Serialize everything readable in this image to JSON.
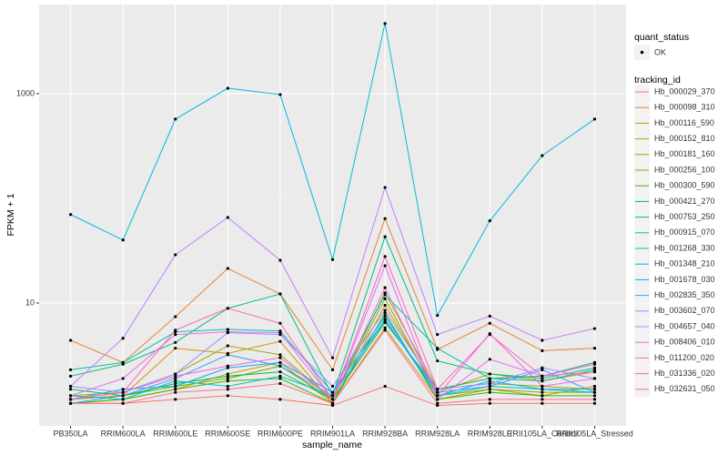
{
  "chart_data": {
    "type": "line",
    "x_label": "sample_name",
    "y_label": "FPKM + 1",
    "categories": [
      "PB350LA",
      "RRIM600LA",
      "RRIM600LE",
      "RRIM600SE",
      "RRIM600PE",
      "RRIM901LA",
      "RRIM928BA",
      "RRIM928LA",
      "RRIM928LE",
      "RRII105LA_Control",
      "RRII105LA_Stressed"
    ],
    "ylim": [
      0.67,
      7100
    ],
    "yticks": [
      10,
      1000
    ],
    "y_minor_grid": [
      1,
      100
    ],
    "log_y": true,
    "grid": true,
    "point_color": "#000000",
    "legend": {
      "point_title": "quant_status",
      "point_label": "OK",
      "line_title": "tracking_id",
      "position": "right"
    },
    "series": [
      {
        "name": "Hb_000029_370",
        "color": "#F8766D",
        "values": [
          1.1,
          1.1,
          1.2,
          1.3,
          1.2,
          1.05,
          1.6,
          1.05,
          1.1,
          1.1,
          1.1
        ]
      },
      {
        "name": "Hb_000098_310",
        "color": "#EA8331",
        "values": [
          4.4,
          2.7,
          7.4,
          21.4,
          12.2,
          2.3,
          64,
          3.6,
          6.4,
          3.5,
          3.7
        ]
      },
      {
        "name": "Hb_000116_590",
        "color": "#D89000",
        "values": [
          1.2,
          1.3,
          3.7,
          3.3,
          4.3,
          1.1,
          9.5,
          1.4,
          2.1,
          1.8,
          2.2
        ]
      },
      {
        "name": "Hb_000152_810",
        "color": "#C09B00",
        "values": [
          1.1,
          1.2,
          1.5,
          2.1,
          2.7,
          1.1,
          5.8,
          1.2,
          1.5,
          1.3,
          1.6
        ]
      },
      {
        "name": "Hb_000181_160",
        "color": "#A3A500",
        "values": [
          1.3,
          1.4,
          2.1,
          3.9,
          3.2,
          1.2,
          12.5,
          1.5,
          1.7,
          1.6,
          1.5
        ]
      },
      {
        "name": "Hb_000256_100",
        "color": "#7CAE00",
        "values": [
          1.2,
          1.3,
          1.6,
          1.9,
          2.5,
          1.2,
          11.0,
          1.3,
          1.5,
          1.4,
          1.4
        ]
      },
      {
        "name": "Hb_000300_590",
        "color": "#39B600",
        "values": [
          1.1,
          1.2,
          1.5,
          1.8,
          1.9,
          1.1,
          8.0,
          1.2,
          1.4,
          1.3,
          1.3
        ]
      },
      {
        "name": "Hb_000421_270",
        "color": "#00BB4E",
        "values": [
          1.5,
          1.3,
          1.7,
          2.0,
          2.2,
          1.2,
          6.5,
          1.5,
          1.9,
          2.0,
          2.7
        ]
      },
      {
        "name": "Hb_000753_250",
        "color": "#00BF7D",
        "values": [
          2.0,
          2.6,
          4.2,
          8.9,
          12.2,
          1.3,
          43,
          2.8,
          2.1,
          1.9,
          2.4
        ]
      },
      {
        "name": "Hb_000915_070",
        "color": "#00C1A3",
        "values": [
          2.3,
          2.7,
          5.3,
          5.6,
          5.4,
          1.4,
          12.0,
          3.7,
          1.9,
          1.8,
          2.3
        ]
      },
      {
        "name": "Hb_001268_330",
        "color": "#00BFC4",
        "values": [
          1.3,
          1.2,
          1.8,
          1.6,
          2.0,
          1.3,
          7.0,
          1.3,
          1.6,
          1.5,
          1.5
        ]
      },
      {
        "name": "Hb_001348_210",
        "color": "#00BAE0",
        "values": [
          70,
          40,
          571,
          1127,
          980,
          26,
          4680,
          7.6,
          61,
          256,
          571
        ]
      },
      {
        "name": "Hb_001678_030",
        "color": "#00B0F6",
        "values": [
          1.2,
          1.5,
          1.6,
          2.4,
          2.7,
          1.4,
          7.5,
          1.3,
          1.8,
          1.5,
          1.4
        ]
      },
      {
        "name": "Hb_002835_350",
        "color": "#35A2FF",
        "values": [
          1.1,
          1.3,
          1.9,
          3.2,
          2.5,
          1.3,
          6.8,
          1.4,
          1.6,
          2.3,
          1.4
        ]
      },
      {
        "name": "Hb_003602_070",
        "color": "#9590FF",
        "values": [
          1.6,
          1.4,
          2.1,
          5.2,
          5.0,
          1.6,
          8.5,
          1.5,
          1.7,
          2.4,
          1.9
        ]
      },
      {
        "name": "Hb_004657_040",
        "color": "#C77CFF",
        "values": [
          1.6,
          4.6,
          28.9,
          65.6,
          25.6,
          3.0,
          127,
          5.0,
          7.5,
          4.4,
          5.7
        ]
      },
      {
        "name": "Hb_008406_010",
        "color": "#E76BF3",
        "values": [
          1.3,
          1.9,
          5.0,
          5.3,
          5.2,
          1.2,
          22.7,
          1.2,
          2.9,
          2.0,
          2.6
        ]
      },
      {
        "name": "Hb_011200_020",
        "color": "#FA62DB",
        "values": [
          1.2,
          1.4,
          2.0,
          2.5,
          3.0,
          1.2,
          14,
          1.3,
          5.1,
          1.6,
          1.9
        ]
      },
      {
        "name": "Hb_031336_020",
        "color": "#FF62BC",
        "values": [
          1.2,
          1.4,
          5.5,
          8.9,
          6.4,
          1.2,
          27.8,
          1.5,
          5.0,
          2.0,
          2.2
        ]
      },
      {
        "name": "Hb_032631_050",
        "color": "#FF6C91",
        "values": [
          1.1,
          1.1,
          1.4,
          1.5,
          1.7,
          1.1,
          5.5,
          1.1,
          1.2,
          1.2,
          1.2
        ]
      }
    ]
  }
}
